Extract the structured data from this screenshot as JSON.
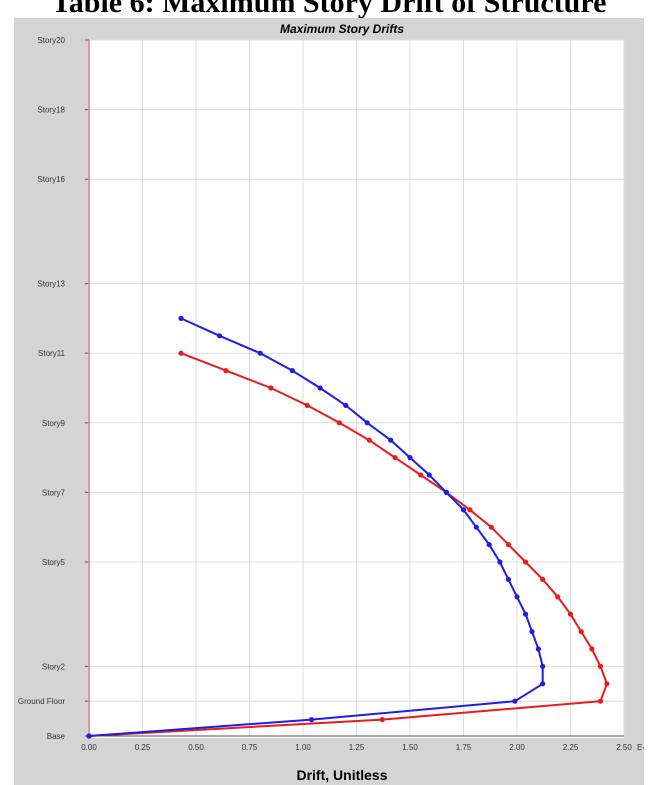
{
  "page_heading": "Table 6: Maximum Story Drift of Structure",
  "chart_data": {
    "type": "line",
    "title": "Maximum Story Drifts",
    "xlabel": "Drift, Unitless",
    "x_unit": "E-3",
    "xlim": [
      0,
      2.5
    ],
    "x_ticks": [
      "0.00",
      "0.25",
      "0.50",
      "0.75",
      "1.00",
      "1.25",
      "1.50",
      "1.75",
      "2.00",
      "2.25",
      "2.50"
    ],
    "y_levels": 21,
    "y_tick_labels": [
      {
        "level": 0,
        "label": "Base"
      },
      {
        "level": 1,
        "label": "Ground Floor"
      },
      {
        "level": 2,
        "label": "Story2"
      },
      {
        "level": 5,
        "label": "Story5"
      },
      {
        "level": 7,
        "label": "Story7"
      },
      {
        "level": 9,
        "label": "Story9"
      },
      {
        "level": 11,
        "label": "Story11"
      },
      {
        "level": 13,
        "label": "Story13"
      },
      {
        "level": 16,
        "label": "Story16"
      },
      {
        "level": 18,
        "label": "Story18"
      },
      {
        "level": 20,
        "label": "Story20"
      }
    ],
    "grid": true,
    "series": [
      {
        "color": "#e81c1c",
        "points": [
          [
            0,
            0
          ],
          [
            1.37,
            0.47
          ],
          [
            2.39,
            1
          ],
          [
            2.42,
            1.5
          ],
          [
            2.39,
            2
          ],
          [
            2.35,
            2.5
          ],
          [
            2.3,
            3
          ],
          [
            2.25,
            3.5
          ],
          [
            2.19,
            4
          ],
          [
            2.12,
            4.5
          ],
          [
            2.04,
            5
          ],
          [
            1.96,
            5.5
          ],
          [
            1.88,
            6
          ],
          [
            1.78,
            6.5
          ],
          [
            1.67,
            7
          ],
          [
            1.55,
            7.5
          ],
          [
            1.43,
            8
          ],
          [
            1.31,
            8.5
          ],
          [
            1.17,
            9
          ],
          [
            1.02,
            9.5
          ],
          [
            0.85,
            10
          ],
          [
            0.64,
            10.5
          ],
          [
            0.43,
            11
          ]
        ]
      },
      {
        "color": "#1e1ee6",
        "points": [
          [
            0,
            0
          ],
          [
            1.04,
            0.47
          ],
          [
            1.99,
            1
          ],
          [
            2.12,
            1.5
          ],
          [
            2.12,
            2
          ],
          [
            2.1,
            2.5
          ],
          [
            2.07,
            3
          ],
          [
            2.04,
            3.5
          ],
          [
            2.0,
            4
          ],
          [
            1.96,
            4.5
          ],
          [
            1.92,
            5
          ],
          [
            1.87,
            5.5
          ],
          [
            1.81,
            6
          ],
          [
            1.75,
            6.5
          ],
          [
            1.67,
            7
          ],
          [
            1.59,
            7.5
          ],
          [
            1.5,
            8
          ],
          [
            1.41,
            8.5
          ],
          [
            1.3,
            9
          ],
          [
            1.2,
            9.5
          ],
          [
            1.08,
            10
          ],
          [
            0.95,
            10.5
          ],
          [
            0.8,
            11
          ],
          [
            0.61,
            11.5
          ],
          [
            0.43,
            12
          ]
        ]
      }
    ]
  }
}
